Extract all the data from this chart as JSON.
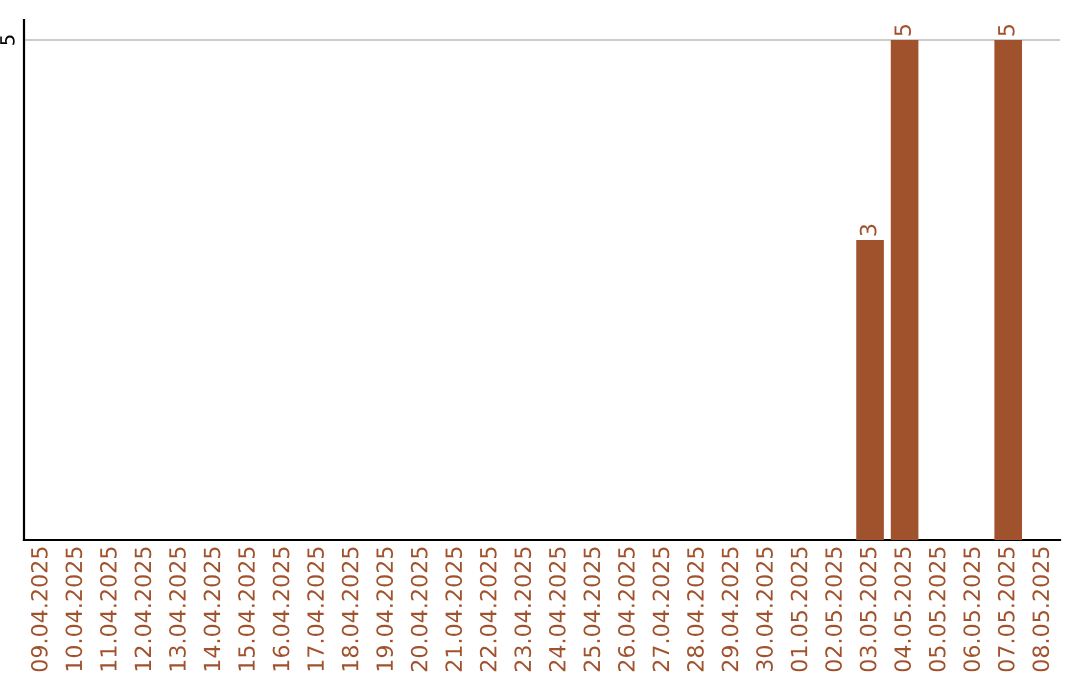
{
  "chart_data": {
    "type": "bar",
    "categories": [
      "09.04.2025",
      "10.04.2025",
      "11.04.2025",
      "12.04.2025",
      "13.04.2025",
      "14.04.2025",
      "15.04.2025",
      "16.04.2025",
      "17.04.2025",
      "18.04.2025",
      "19.04.2025",
      "20.04.2025",
      "21.04.2025",
      "22.04.2025",
      "23.04.2025",
      "24.04.2025",
      "25.04.2025",
      "26.04.2025",
      "27.04.2025",
      "28.04.2025",
      "29.04.2025",
      "30.04.2025",
      "01.05.2025",
      "02.05.2025",
      "03.05.2025",
      "04.05.2025",
      "05.05.2025",
      "06.05.2025",
      "07.05.2025",
      "08.05.2025"
    ],
    "values": [
      null,
      null,
      null,
      null,
      null,
      null,
      null,
      null,
      null,
      null,
      null,
      null,
      null,
      null,
      null,
      null,
      null,
      null,
      null,
      null,
      null,
      null,
      null,
      null,
      3,
      5,
      null,
      null,
      5,
      null
    ],
    "data_labels": true,
    "color": "#a0522d",
    "ylim": [
      0,
      5.2
    ],
    "yticks": [
      5
    ],
    "grid": "y"
  }
}
